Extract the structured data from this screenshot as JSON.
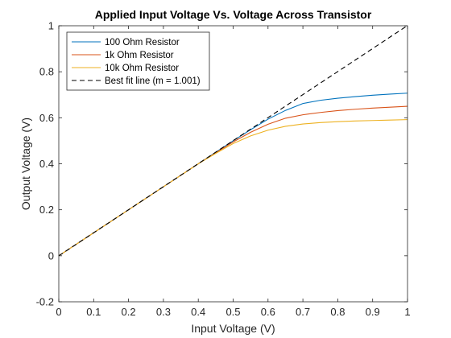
{
  "chart_data": {
    "type": "line",
    "title": "Applied Input Voltage Vs. Voltage Across Transistor",
    "xlabel": "Input Voltage (V)",
    "ylabel": "Output Voltage (V)",
    "xlim": [
      0,
      1
    ],
    "ylim": [
      -0.2,
      1
    ],
    "xticks": [
      0,
      0.1,
      0.2,
      0.3,
      0.4,
      0.5,
      0.6,
      0.7,
      0.8,
      0.9,
      1
    ],
    "xtick_labels": [
      "0",
      "0.1",
      "0.2",
      "0.3",
      "0.4",
      "0.5",
      "0.6",
      "0.7",
      "0.8",
      "0.9",
      "1"
    ],
    "yticks": [
      -0.2,
      0,
      0.2,
      0.4,
      0.6,
      0.8,
      1
    ],
    "ytick_labels": [
      "-0.2",
      "0",
      "0.2",
      "0.4",
      "0.6",
      "0.8",
      "1"
    ],
    "grid": false,
    "legend_position": "top-left",
    "x": [
      0,
      0.1,
      0.2,
      0.3,
      0.4,
      0.45,
      0.5,
      0.55,
      0.6,
      0.65,
      0.7,
      0.75,
      0.8,
      0.85,
      0.9,
      0.95,
      1.0
    ],
    "series": [
      {
        "name": "100 Ohm Resistor",
        "color": "#0072BD",
        "style": "solid",
        "values": [
          0,
          0.1,
          0.2,
          0.3,
          0.4,
          0.45,
          0.5,
          0.548,
          0.594,
          0.632,
          0.662,
          0.676,
          0.685,
          0.692,
          0.698,
          0.703,
          0.707
        ]
      },
      {
        "name": "1k Ohm Resistor",
        "color": "#D95319",
        "style": "solid",
        "values": [
          0,
          0.1,
          0.2,
          0.3,
          0.4,
          0.448,
          0.495,
          0.537,
          0.572,
          0.598,
          0.613,
          0.623,
          0.631,
          0.637,
          0.642,
          0.646,
          0.65
        ]
      },
      {
        "name": "10k Ohm Resistor",
        "color": "#EDB120",
        "style": "solid",
        "values": [
          0,
          0.1,
          0.2,
          0.3,
          0.4,
          0.445,
          0.488,
          0.521,
          0.546,
          0.563,
          0.573,
          0.579,
          0.583,
          0.586,
          0.588,
          0.59,
          0.592
        ]
      },
      {
        "name": "Best fit line (m = 1.001)",
        "color": "#000000",
        "style": "dashed",
        "values": [
          0,
          0.1001,
          0.2002,
          0.3003,
          0.4004,
          0.45045,
          0.5005,
          0.55055,
          0.6006,
          0.65065,
          0.7007,
          0.75075,
          0.8008,
          0.85085,
          0.9009,
          0.95095,
          1.001
        ]
      }
    ]
  }
}
